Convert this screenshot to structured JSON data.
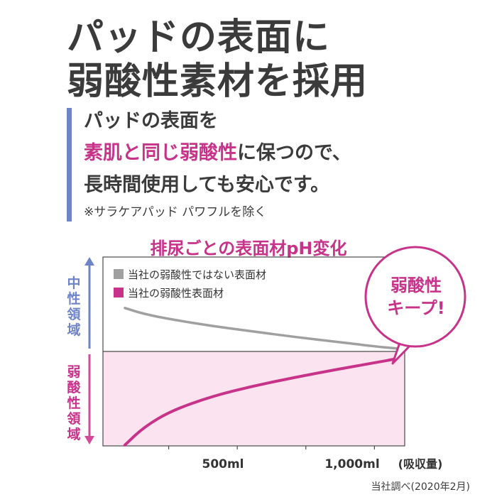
{
  "headline": {
    "line1": "パッドの表面に",
    "line2": "弱酸性素材を採用"
  },
  "body": {
    "line1": "パッドの表面を",
    "line2_highlight": "素肌と同じ弱酸性",
    "line2_rest": "に保つので、",
    "line3": "長時間使用しても安心です。"
  },
  "footnote": "※サラケアパッド パワフルを除く",
  "source": "当社調べ(2020年2月)",
  "colors": {
    "accent_magenta": "#c8338a",
    "accent_blue": "#6f84c6",
    "gray_series": "#a0a0a0",
    "acidic_zone": "#fbe4ef"
  },
  "chart_data": {
    "type": "line",
    "title": "排尿ごとの表面材pH変化",
    "xlabel": "(吸収量)",
    "x_ticks": [
      "500ml",
      "1,000ml"
    ],
    "xlim": [
      0,
      1100
    ],
    "ylabel_top": [
      "中",
      "性",
      "領",
      "域"
    ],
    "ylabel_bottom": [
      "弱",
      "酸",
      "性",
      "領",
      "域"
    ],
    "zones": [
      "中性領域",
      "弱酸性領域"
    ],
    "series": [
      {
        "name": "当社の弱酸性ではない表面材",
        "color": "#a0a0a0",
        "x": [
          80,
          150,
          250,
          400,
          550,
          700,
          850,
          1000,
          1070
        ],
        "y": [
          0.72,
          0.62,
          0.53,
          0.42,
          0.33,
          0.24,
          0.16,
          0.08,
          0.05
        ]
      },
      {
        "name": "当社の弱酸性表面材",
        "color": "#c8338a",
        "x": [
          80,
          150,
          250,
          400,
          550,
          700,
          850,
          1000,
          1070
        ],
        "y": [
          -1.55,
          -1.25,
          -0.98,
          -0.74,
          -0.57,
          -0.43,
          -0.3,
          -0.18,
          -0.12
        ]
      }
    ],
    "callout": {
      "line1": "弱酸性",
      "line2": "キープ!"
    }
  }
}
